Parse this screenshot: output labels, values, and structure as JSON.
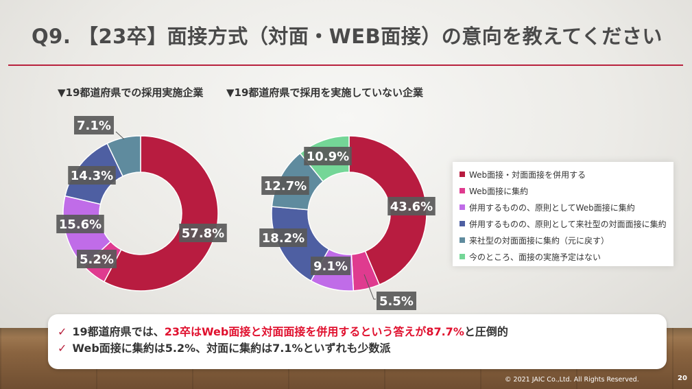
{
  "title": "Q9. 【23卒】面接方式（対面・WEB面接）の意向を教えてください",
  "legend_items": [
    "Web面接・対面面接を併用する",
    "Web面接に集約",
    "併用するものの、原則としてWeb面接に集約",
    "併用するものの、原則として来社型の対面面接に集約",
    "来社型の対面面接に集約（元に戻す）",
    "今のところ、面接の実施予定はない"
  ],
  "colors": [
    "#b81c40",
    "#df3b8f",
    "#c06ce8",
    "#4e5fa2",
    "#5f8b9e",
    "#74d697"
  ],
  "chart_data": [
    {
      "type": "pie",
      "subtype": "donut",
      "title": "▼19都道府県での採用実施企業",
      "categories": [
        "Web面接・対面面接を併用する",
        "Web面接に集約",
        "併用するものの、原則としてWeb面接に集約",
        "併用するものの、原則として来社型の対面面接に集約",
        "来社型の対面面接に集約（元に戻す）"
      ],
      "values": [
        57.8,
        5.2,
        15.6,
        14.3,
        7.1
      ],
      "labels": [
        "57.8%",
        "5.2%",
        "15.6%",
        "14.3%",
        "7.1%"
      ]
    },
    {
      "type": "pie",
      "subtype": "donut",
      "title": "▼19都道府県で採用を実施していない企業",
      "categories": [
        "Web面接・対面面接を併用する",
        "Web面接に集約",
        "併用するものの、原則としてWeb面接に集約",
        "併用するものの、原則として来社型の対面面接に集約",
        "来社型の対面面接に集約（元に戻す）",
        "今のところ、面接の実施予定はない"
      ],
      "values": [
        43.6,
        5.5,
        9.1,
        18.2,
        12.7,
        10.9
      ],
      "labels": [
        "43.6%",
        "5.5%",
        "9.1%",
        "18.2%",
        "12.7%",
        "10.9%"
      ]
    }
  ],
  "notes": {
    "line1_pre": "19都道府県では、",
    "line1_highlight": "23卒はWeb面接と対面面接を併用するという答えが87.7%",
    "line1_post": "と圧倒的",
    "line2": "Web面接に集約は5.2%、対面に集約は7.1%といずれも少数派",
    "check": "✓"
  },
  "footer": {
    "copyright": "© 2021 JAIC Co.,Ltd. All Rights Reserved.",
    "page": "20"
  }
}
